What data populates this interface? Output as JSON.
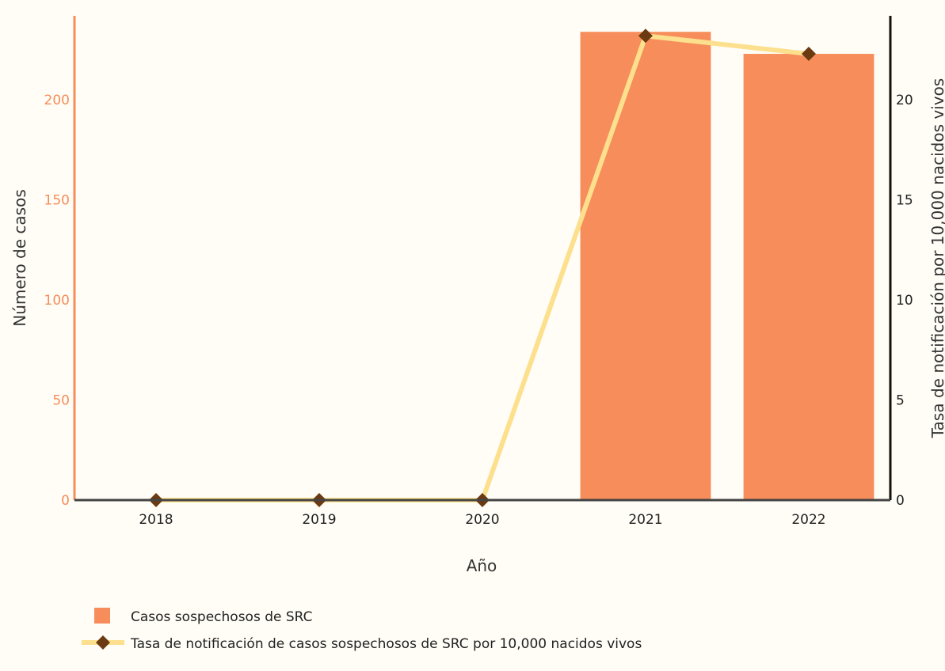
{
  "chart_data": {
    "type": "bar",
    "categories": [
      "2018",
      "2019",
      "2020",
      "2021",
      "2022"
    ],
    "series": [
      {
        "name": "Casos sospechosos de SRC",
        "type": "bar",
        "axis": "left",
        "values": [
          0,
          0,
          0,
          234,
          223
        ],
        "color": "#f68d5a"
      },
      {
        "name": "Tasa de notificación de casos sospechosos de SRC por 10,000 nacidos vivos",
        "type": "line",
        "axis": "right",
        "values": [
          0,
          0,
          0,
          23.2,
          22.3
        ],
        "line_color": "#fde08e",
        "marker_color": "#6b3a10",
        "marker": "diamond"
      }
    ],
    "xlabel": "Año",
    "ylabel_left": "Número de casos",
    "ylabel_right": "Tasa de notificación por 10,000 nacidos vivos",
    "ylim_left": [
      0,
      242
    ],
    "ylim_right": [
      0,
      24.2
    ],
    "yticks_left": [
      0,
      50,
      100,
      150,
      200
    ],
    "yticks_right": [
      0,
      5,
      10,
      15,
      20
    ],
    "left_axis_color": "#f68d5a",
    "right_axis_color": "#111111",
    "grid": false,
    "legend_position": "bottom-left"
  }
}
